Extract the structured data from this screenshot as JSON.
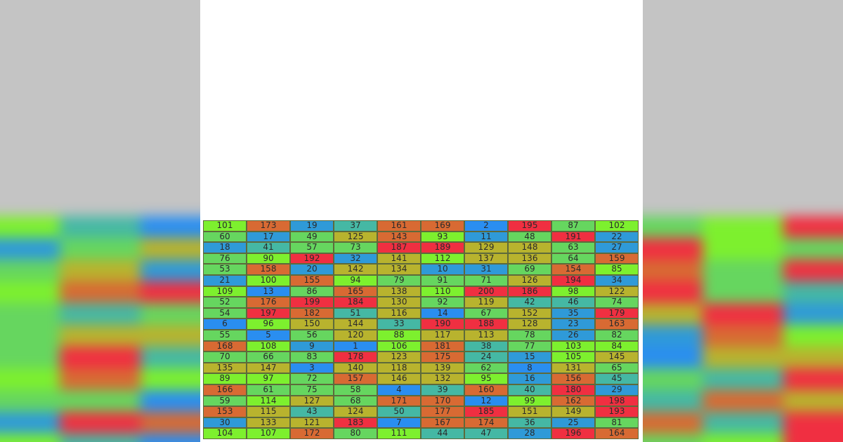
{
  "palette": {
    "lime": "#7df02e",
    "green": "#66d65f",
    "teal": "#45b8a4",
    "blue": "#2f9ad8",
    "bright_blue": "#2a8ef0",
    "olive": "#b8b32e",
    "orange": "#d86a33",
    "red": "#f02f41",
    "gray_background": "#c4c4c4"
  },
  "grid": {
    "rows": [
      [
        101,
        173,
        19,
        37,
        161,
        169,
        2,
        195,
        87,
        102
      ],
      [
        60,
        17,
        49,
        125,
        143,
        93,
        11,
        48,
        191,
        22
      ],
      [
        18,
        41,
        57,
        73,
        187,
        189,
        129,
        148,
        63,
        27
      ],
      [
        76,
        90,
        192,
        32,
        141,
        112,
        137,
        136,
        64,
        159
      ],
      [
        53,
        158,
        20,
        142,
        134,
        10,
        31,
        69,
        154,
        85
      ],
      [
        21,
        100,
        155,
        94,
        79,
        91,
        71,
        126,
        194,
        34
      ],
      [
        109,
        13,
        86,
        165,
        138,
        110,
        200,
        186,
        98,
        122
      ],
      [
        52,
        176,
        199,
        184,
        130,
        92,
        119,
        42,
        46,
        74
      ],
      [
        54,
        197,
        182,
        51,
        116,
        14,
        67,
        152,
        35,
        179
      ],
      [
        6,
        96,
        150,
        144,
        33,
        190,
        188,
        128,
        23,
        163
      ],
      [
        55,
        5,
        56,
        120,
        88,
        117,
        113,
        78,
        26,
        82
      ],
      [
        168,
        108,
        9,
        1,
        106,
        181,
        38,
        77,
        103,
        84
      ],
      [
        70,
        66,
        83,
        178,
        123,
        175,
        24,
        15,
        105,
        145
      ],
      [
        135,
        147,
        3,
        140,
        118,
        139,
        62,
        8,
        131,
        65
      ],
      [
        89,
        97,
        72,
        157,
        146,
        132,
        95,
        16,
        156,
        45
      ],
      [
        166,
        61,
        75,
        58,
        4,
        39,
        160,
        40,
        180,
        29
      ],
      [
        59,
        114,
        127,
        68,
        171,
        170,
        12,
        99,
        162,
        198
      ],
      [
        153,
        115,
        43,
        124,
        50,
        177,
        185,
        151,
        149,
        193
      ],
      [
        30,
        133,
        121,
        183,
        7,
        167,
        174,
        36,
        25,
        81
      ],
      [
        104,
        107,
        172,
        80,
        111,
        44,
        47,
        28,
        196,
        164
      ]
    ],
    "colors": [
      [
        "lime",
        "orange",
        "blue",
        "teal",
        "orange",
        "orange",
        "bright_blue",
        "red",
        "green",
        "lime"
      ],
      [
        "green",
        "blue",
        "green",
        "olive",
        "orange",
        "lime",
        "blue",
        "green",
        "red",
        "blue"
      ],
      [
        "blue",
        "teal",
        "green",
        "green",
        "red",
        "red",
        "olive",
        "olive",
        "green",
        "blue"
      ],
      [
        "green",
        "lime",
        "red",
        "blue",
        "olive",
        "lime",
        "olive",
        "olive",
        "green",
        "orange"
      ],
      [
        "green",
        "orange",
        "blue",
        "olive",
        "olive",
        "blue",
        "blue",
        "green",
        "orange",
        "lime"
      ],
      [
        "blue",
        "lime",
        "orange",
        "lime",
        "green",
        "green",
        "green",
        "olive",
        "red",
        "blue"
      ],
      [
        "lime",
        "bright_blue",
        "green",
        "orange",
        "olive",
        "lime",
        "red",
        "red",
        "lime",
        "olive"
      ],
      [
        "green",
        "orange",
        "red",
        "red",
        "olive",
        "green",
        "olive",
        "teal",
        "teal",
        "green"
      ],
      [
        "green",
        "red",
        "orange",
        "teal",
        "olive",
        "bright_blue",
        "green",
        "olive",
        "blue",
        "red"
      ],
      [
        "bright_blue",
        "lime",
        "olive",
        "olive",
        "teal",
        "red",
        "red",
        "olive",
        "blue",
        "orange"
      ],
      [
        "green",
        "bright_blue",
        "green",
        "olive",
        "lime",
        "olive",
        "olive",
        "green",
        "blue",
        "green"
      ],
      [
        "orange",
        "lime",
        "blue",
        "bright_blue",
        "lime",
        "orange",
        "teal",
        "green",
        "lime",
        "lime"
      ],
      [
        "green",
        "green",
        "green",
        "red",
        "olive",
        "orange",
        "teal",
        "blue",
        "lime",
        "olive"
      ],
      [
        "olive",
        "olive",
        "bright_blue",
        "olive",
        "olive",
        "olive",
        "green",
        "bright_blue",
        "olive",
        "green"
      ],
      [
        "lime",
        "lime",
        "green",
        "orange",
        "olive",
        "olive",
        "lime",
        "blue",
        "orange",
        "teal"
      ],
      [
        "orange",
        "green",
        "green",
        "green",
        "bright_blue",
        "teal",
        "orange",
        "teal",
        "red",
        "blue"
      ],
      [
        "green",
        "lime",
        "olive",
        "green",
        "orange",
        "orange",
        "bright_blue",
        "lime",
        "orange",
        "red"
      ],
      [
        "orange",
        "olive",
        "teal",
        "olive",
        "teal",
        "orange",
        "red",
        "olive",
        "olive",
        "red"
      ],
      [
        "blue",
        "olive",
        "olive",
        "red",
        "bright_blue",
        "orange",
        "orange",
        "teal",
        "blue",
        "green"
      ],
      [
        "lime",
        "lime",
        "orange",
        "green",
        "lime",
        "teal",
        "teal",
        "blue",
        "red",
        "orange"
      ]
    ]
  }
}
